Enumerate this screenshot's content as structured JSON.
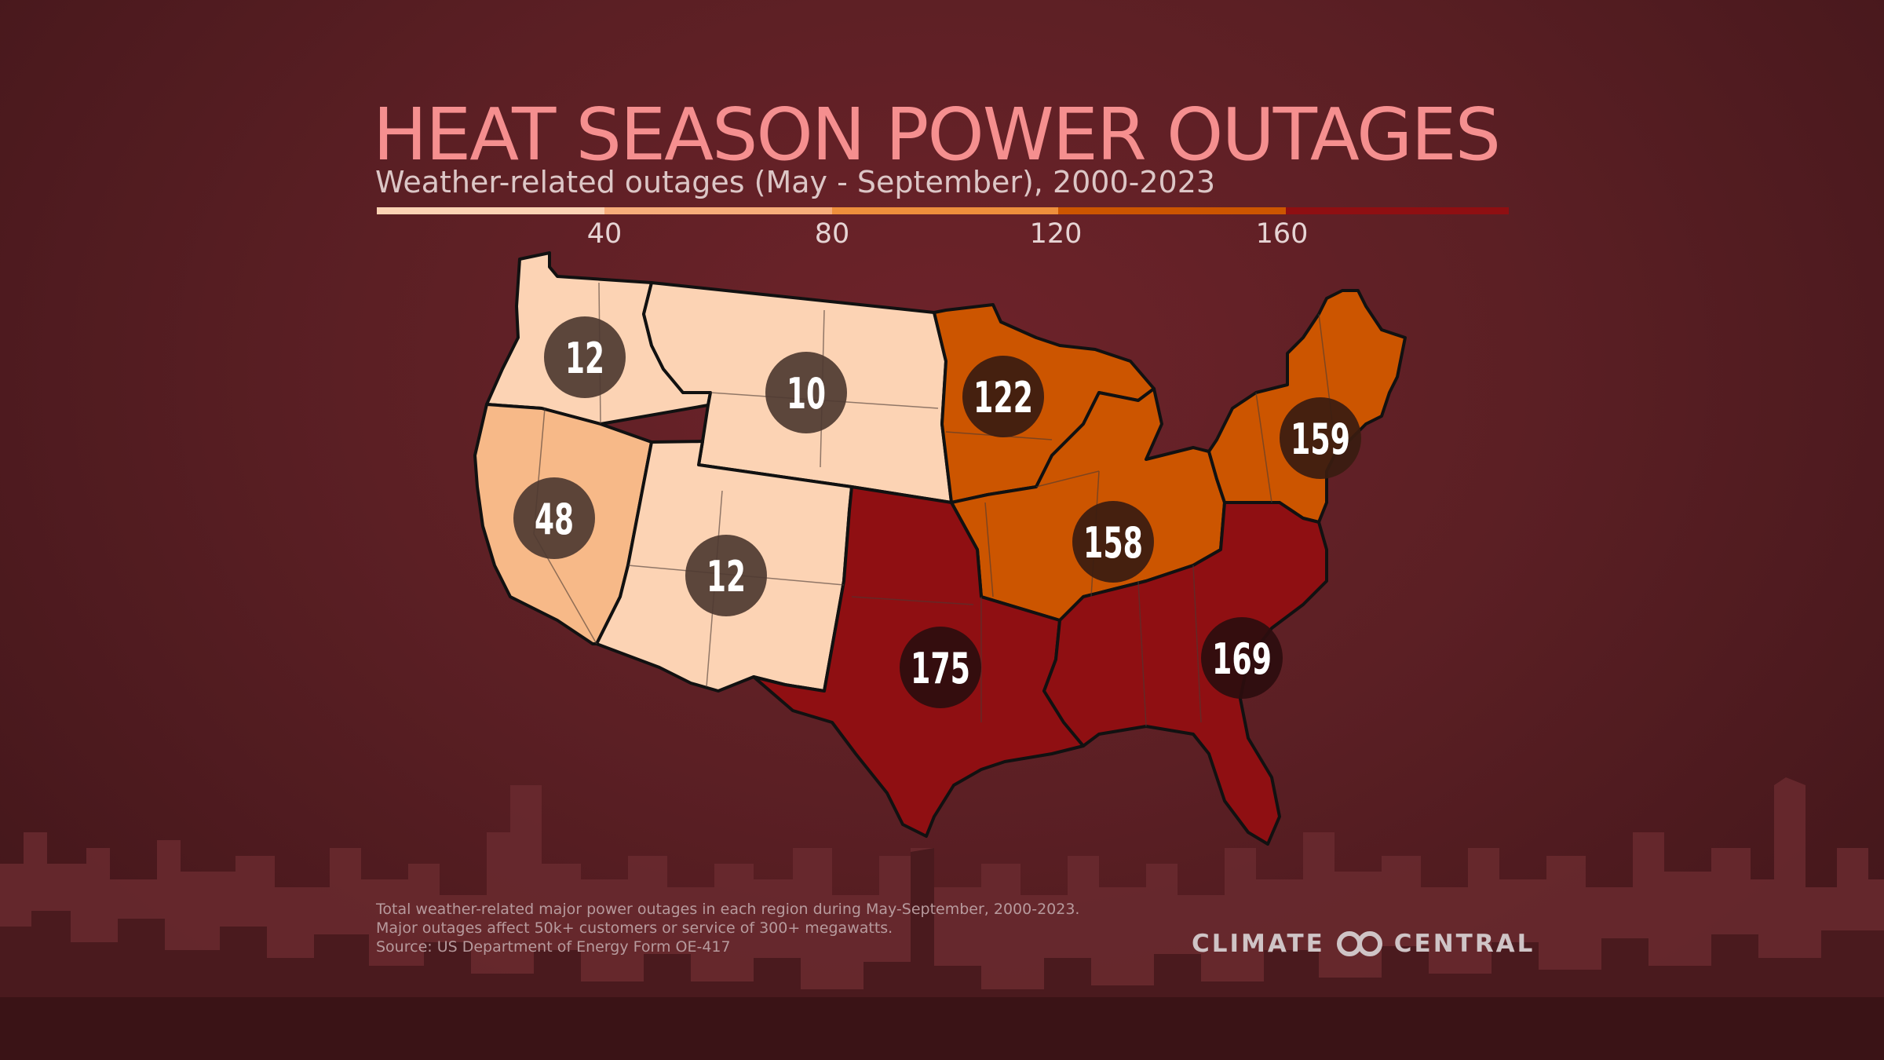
{
  "title": "HEAT SEASON POWER OUTAGES",
  "subtitle": "Weather-related outages (May - September), 2000-2023",
  "legend": {
    "ticks": [
      "40",
      "80",
      "120",
      "160"
    ],
    "colors": [
      "#fcd3b4",
      "#f7ad7a",
      "#ee8f3c",
      "#cc5500",
      "#8f0f12"
    ]
  },
  "regions": [
    {
      "name": "Northwest",
      "value": "12",
      "color": "#fcd3b4"
    },
    {
      "name": "Northern Rockies and Plains",
      "value": "10",
      "color": "#fcd3b4"
    },
    {
      "name": "West",
      "value": "48",
      "color": "#f7b988"
    },
    {
      "name": "Southwest",
      "value": "12",
      "color": "#fcd3b4"
    },
    {
      "name": "Upper Midwest",
      "value": "122",
      "color": "#cc5500"
    },
    {
      "name": "Ohio Valley",
      "value": "158",
      "color": "#cc5500"
    },
    {
      "name": "Northeast",
      "value": "159",
      "color": "#cc5500"
    },
    {
      "name": "South",
      "value": "175",
      "color": "#8f0f12"
    },
    {
      "name": "Southeast",
      "value": "169",
      "color": "#8f0f12"
    }
  ],
  "footnote": {
    "line1": "Total weather-related major power outages in each region during May-September, 2000-2023.",
    "line2": "Major outages affect 50k+ customers or service of 300+ megawatts.",
    "line3": "Source: US Department of Energy Form OE-417"
  },
  "brand": {
    "left": "CLIMATE",
    "right": "CENTRAL"
  }
}
